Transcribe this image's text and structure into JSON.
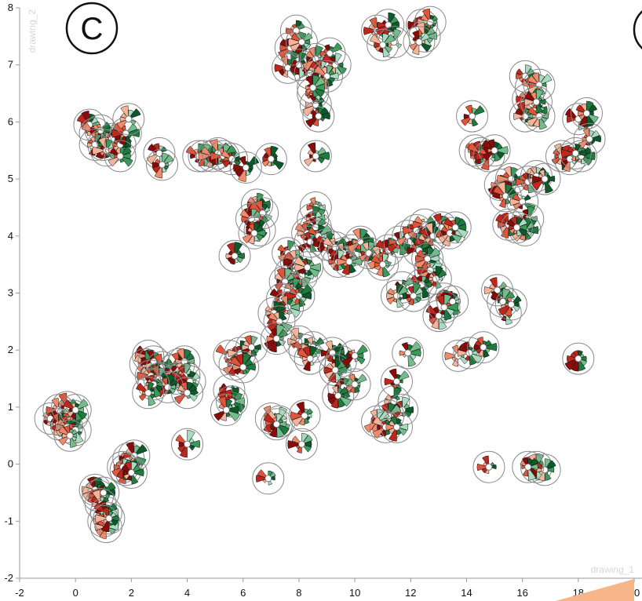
{
  "panel_label": "C",
  "colors": {
    "greens": [
      "#0b5a2a",
      "#1e7a3e",
      "#3a9a5b",
      "#73bd8c",
      "#a8dcc0"
    ],
    "reds": [
      "#8b0a0a",
      "#c0271c",
      "#e0553a",
      "#f08a6a",
      "#f5b49a"
    ],
    "ring": "#8a8a8a",
    "axis": "#999999",
    "corner_wedge": "#f7b58a"
  },
  "chart_data": {
    "type": "scatter",
    "xlabel": "drawing_1",
    "ylabel": "drawing_2",
    "xlim": [
      -2,
      20
    ],
    "ylim": [
      -2,
      8
    ],
    "x_ticks": [
      -2,
      0,
      2,
      4,
      6,
      8,
      10,
      12,
      14,
      16,
      18,
      20
    ],
    "y_ticks": [
      -2,
      -1,
      0,
      1,
      2,
      3,
      4,
      5,
      6,
      7,
      8
    ],
    "marker": "radial glyph",
    "points": [
      [
        7.9,
        7.6
      ],
      [
        7.7,
        7.3
      ],
      [
        8.1,
        7.4
      ],
      [
        7.6,
        6.95
      ],
      [
        8.0,
        7.0
      ],
      [
        8.4,
        6.85
      ],
      [
        8.6,
        7.1
      ],
      [
        8.8,
        6.9
      ],
      [
        9.1,
        7.2
      ],
      [
        9.3,
        7.0
      ],
      [
        9.0,
        6.8
      ],
      [
        8.5,
        6.5
      ],
      [
        8.6,
        6.3
      ],
      [
        8.7,
        6.1
      ],
      [
        8.5,
        6.6
      ],
      [
        10.8,
        7.6
      ],
      [
        11.2,
        7.7
      ],
      [
        11.4,
        7.4
      ],
      [
        11.0,
        7.35
      ],
      [
        12.4,
        7.7
      ],
      [
        12.7,
        7.75
      ],
      [
        12.5,
        7.5
      ],
      [
        12.3,
        7.4
      ],
      [
        0.5,
        5.95
      ],
      [
        0.7,
        5.8
      ],
      [
        0.9,
        5.85
      ],
      [
        1.0,
        5.6
      ],
      [
        0.7,
        5.6
      ],
      [
        1.3,
        5.7
      ],
      [
        1.1,
        5.5
      ],
      [
        1.6,
        5.6
      ],
      [
        1.8,
        5.8
      ],
      [
        1.9,
        6.05
      ],
      [
        1.6,
        5.4
      ],
      [
        3.0,
        5.45
      ],
      [
        3.1,
        5.25
      ],
      [
        4.4,
        5.4
      ],
      [
        4.6,
        5.4
      ],
      [
        4.9,
        5.4
      ],
      [
        5.1,
        5.45
      ],
      [
        5.3,
        5.4
      ],
      [
        5.6,
        5.35
      ],
      [
        6.1,
        5.2
      ],
      [
        7.0,
        5.35
      ],
      [
        8.6,
        5.4
      ],
      [
        14.2,
        6.1
      ],
      [
        14.3,
        5.5
      ],
      [
        14.5,
        5.45
      ],
      [
        14.8,
        5.4
      ],
      [
        15.0,
        5.5
      ],
      [
        16.1,
        6.8
      ],
      [
        16.3,
        6.6
      ],
      [
        16.6,
        6.65
      ],
      [
        16.2,
        6.4
      ],
      [
        16.4,
        6.2
      ],
      [
        16.1,
        6.1
      ],
      [
        16.6,
        6.1
      ],
      [
        16.5,
        6.35
      ],
      [
        18.0,
        6.05
      ],
      [
        18.3,
        6.15
      ],
      [
        18.4,
        5.7
      ],
      [
        18.1,
        5.4
      ],
      [
        17.4,
        5.4
      ],
      [
        17.7,
        5.35
      ],
      [
        17.9,
        5.45
      ],
      [
        15.2,
        4.9
      ],
      [
        15.6,
        5.0
      ],
      [
        15.4,
        4.7
      ],
      [
        16.2,
        4.95
      ],
      [
        16.5,
        5.05
      ],
      [
        16.8,
        5.0
      ],
      [
        16.0,
        4.6
      ],
      [
        16.2,
        4.3
      ],
      [
        16.1,
        4.1
      ],
      [
        15.5,
        4.2
      ],
      [
        15.8,
        4.15
      ],
      [
        6.5,
        4.55
      ],
      [
        6.7,
        4.4
      ],
      [
        6.3,
        4.3
      ],
      [
        6.6,
        4.1
      ],
      [
        6.4,
        4.05
      ],
      [
        5.7,
        3.65
      ],
      [
        8.6,
        4.5
      ],
      [
        8.5,
        4.3
      ],
      [
        8.6,
        4.15
      ],
      [
        8.3,
        4.05
      ],
      [
        8.4,
        3.9
      ],
      [
        8.7,
        4.0
      ],
      [
        9.0,
        3.85
      ],
      [
        9.3,
        3.8
      ],
      [
        9.6,
        3.7
      ],
      [
        9.9,
        3.75
      ],
      [
        9.4,
        3.55
      ],
      [
        9.8,
        3.55
      ],
      [
        10.2,
        3.9
      ],
      [
        10.5,
        3.7
      ],
      [
        10.9,
        3.6
      ],
      [
        11.2,
        3.75
      ],
      [
        11.0,
        3.5
      ],
      [
        11.6,
        3.9
      ],
      [
        11.9,
        4.0
      ],
      [
        12.2,
        4.1
      ],
      [
        12.5,
        4.2
      ],
      [
        12.6,
        3.9
      ],
      [
        12.8,
        4.0
      ],
      [
        13.1,
        4.15
      ],
      [
        13.4,
        4.05
      ],
      [
        13.6,
        4.15
      ],
      [
        12.3,
        3.75
      ],
      [
        12.6,
        3.6
      ],
      [
        12.7,
        3.4
      ],
      [
        12.9,
        3.25
      ],
      [
        12.4,
        3.15
      ],
      [
        11.7,
        3.1
      ],
      [
        11.5,
        2.95
      ],
      [
        12.1,
        2.95
      ],
      [
        13.2,
        2.9
      ],
      [
        13.0,
        2.6
      ],
      [
        13.5,
        2.85
      ],
      [
        13.2,
        2.75
      ],
      [
        7.6,
        3.7
      ],
      [
        7.9,
        3.55
      ],
      [
        7.7,
        3.35
      ],
      [
        8.1,
        3.3
      ],
      [
        8.3,
        3.45
      ],
      [
        7.5,
        3.2
      ],
      [
        7.8,
        3.05
      ],
      [
        7.4,
        2.9
      ],
      [
        8.0,
        2.95
      ],
      [
        7.6,
        2.75
      ],
      [
        7.1,
        2.65
      ],
      [
        7.3,
        2.5
      ],
      [
        7.2,
        2.2
      ],
      [
        15.1,
        3.05
      ],
      [
        15.3,
        2.85
      ],
      [
        15.4,
        2.65
      ],
      [
        15.6,
        2.8
      ],
      [
        2.6,
        1.9
      ],
      [
        2.5,
        1.75
      ],
      [
        2.8,
        1.8
      ],
      [
        3.1,
        1.7
      ],
      [
        2.7,
        1.55
      ],
      [
        3.0,
        1.5
      ],
      [
        3.5,
        1.65
      ],
      [
        3.7,
        1.75
      ],
      [
        3.9,
        1.8
      ],
      [
        3.6,
        1.5
      ],
      [
        3.9,
        1.55
      ],
      [
        4.1,
        1.45
      ],
      [
        4.0,
        1.25
      ],
      [
        3.3,
        1.35
      ],
      [
        2.8,
        1.4
      ],
      [
        2.6,
        1.25
      ],
      [
        5.5,
        1.9
      ],
      [
        5.7,
        1.75
      ],
      [
        5.9,
        1.95
      ],
      [
        6.3,
        2.05
      ],
      [
        6.0,
        1.7
      ],
      [
        5.5,
        1.3
      ],
      [
        5.6,
        1.1
      ],
      [
        5.4,
        0.95
      ],
      [
        8.0,
        2.15
      ],
      [
        8.2,
        2.0
      ],
      [
        8.5,
        2.05
      ],
      [
        8.4,
        1.85
      ],
      [
        9.2,
        1.95
      ],
      [
        9.5,
        1.8
      ],
      [
        9.3,
        1.65
      ],
      [
        10.0,
        1.9
      ],
      [
        9.6,
        1.35
      ],
      [
        10.0,
        1.4
      ],
      [
        9.4,
        1.2
      ],
      [
        11.9,
        1.95
      ],
      [
        11.5,
        1.45
      ],
      [
        11.4,
        1.1
      ],
      [
        11.7,
        0.95
      ],
      [
        11.2,
        0.85
      ],
      [
        10.8,
        0.75
      ],
      [
        11.1,
        0.65
      ],
      [
        11.5,
        0.65
      ],
      [
        13.7,
        1.9
      ],
      [
        14.1,
        1.95
      ],
      [
        14.6,
        2.05
      ],
      [
        18.0,
        1.85
      ],
      [
        -0.9,
        0.8
      ],
      [
        -0.6,
        0.95
      ],
      [
        -0.3,
        1.0
      ],
      [
        -0.1,
        0.85
      ],
      [
        -0.6,
        0.7
      ],
      [
        -0.3,
        0.65
      ],
      [
        0.0,
        0.6
      ],
      [
        -0.2,
        0.5
      ],
      [
        0.0,
        0.95
      ],
      [
        7.0,
        0.8
      ],
      [
        7.3,
        0.75
      ],
      [
        7.2,
        0.7
      ],
      [
        8.2,
        0.85
      ],
      [
        8.1,
        0.35
      ],
      [
        4.0,
        0.35
      ],
      [
        1.9,
        0.1
      ],
      [
        2.1,
        0.15
      ],
      [
        1.8,
        -0.1
      ],
      [
        1.7,
        -0.05
      ],
      [
        2.0,
        -0.15
      ],
      [
        0.7,
        -0.45
      ],
      [
        0.8,
        -0.55
      ],
      [
        1.0,
        -0.5
      ],
      [
        0.9,
        -0.7
      ],
      [
        1.1,
        -0.85
      ],
      [
        1.0,
        -1.0
      ],
      [
        1.1,
        -1.1
      ],
      [
        1.2,
        -0.95
      ],
      [
        6.9,
        -0.25
      ],
      [
        14.8,
        -0.05
      ],
      [
        16.5,
        -0.05
      ],
      [
        16.8,
        -0.1
      ],
      [
        16.2,
        -0.05
      ]
    ]
  }
}
